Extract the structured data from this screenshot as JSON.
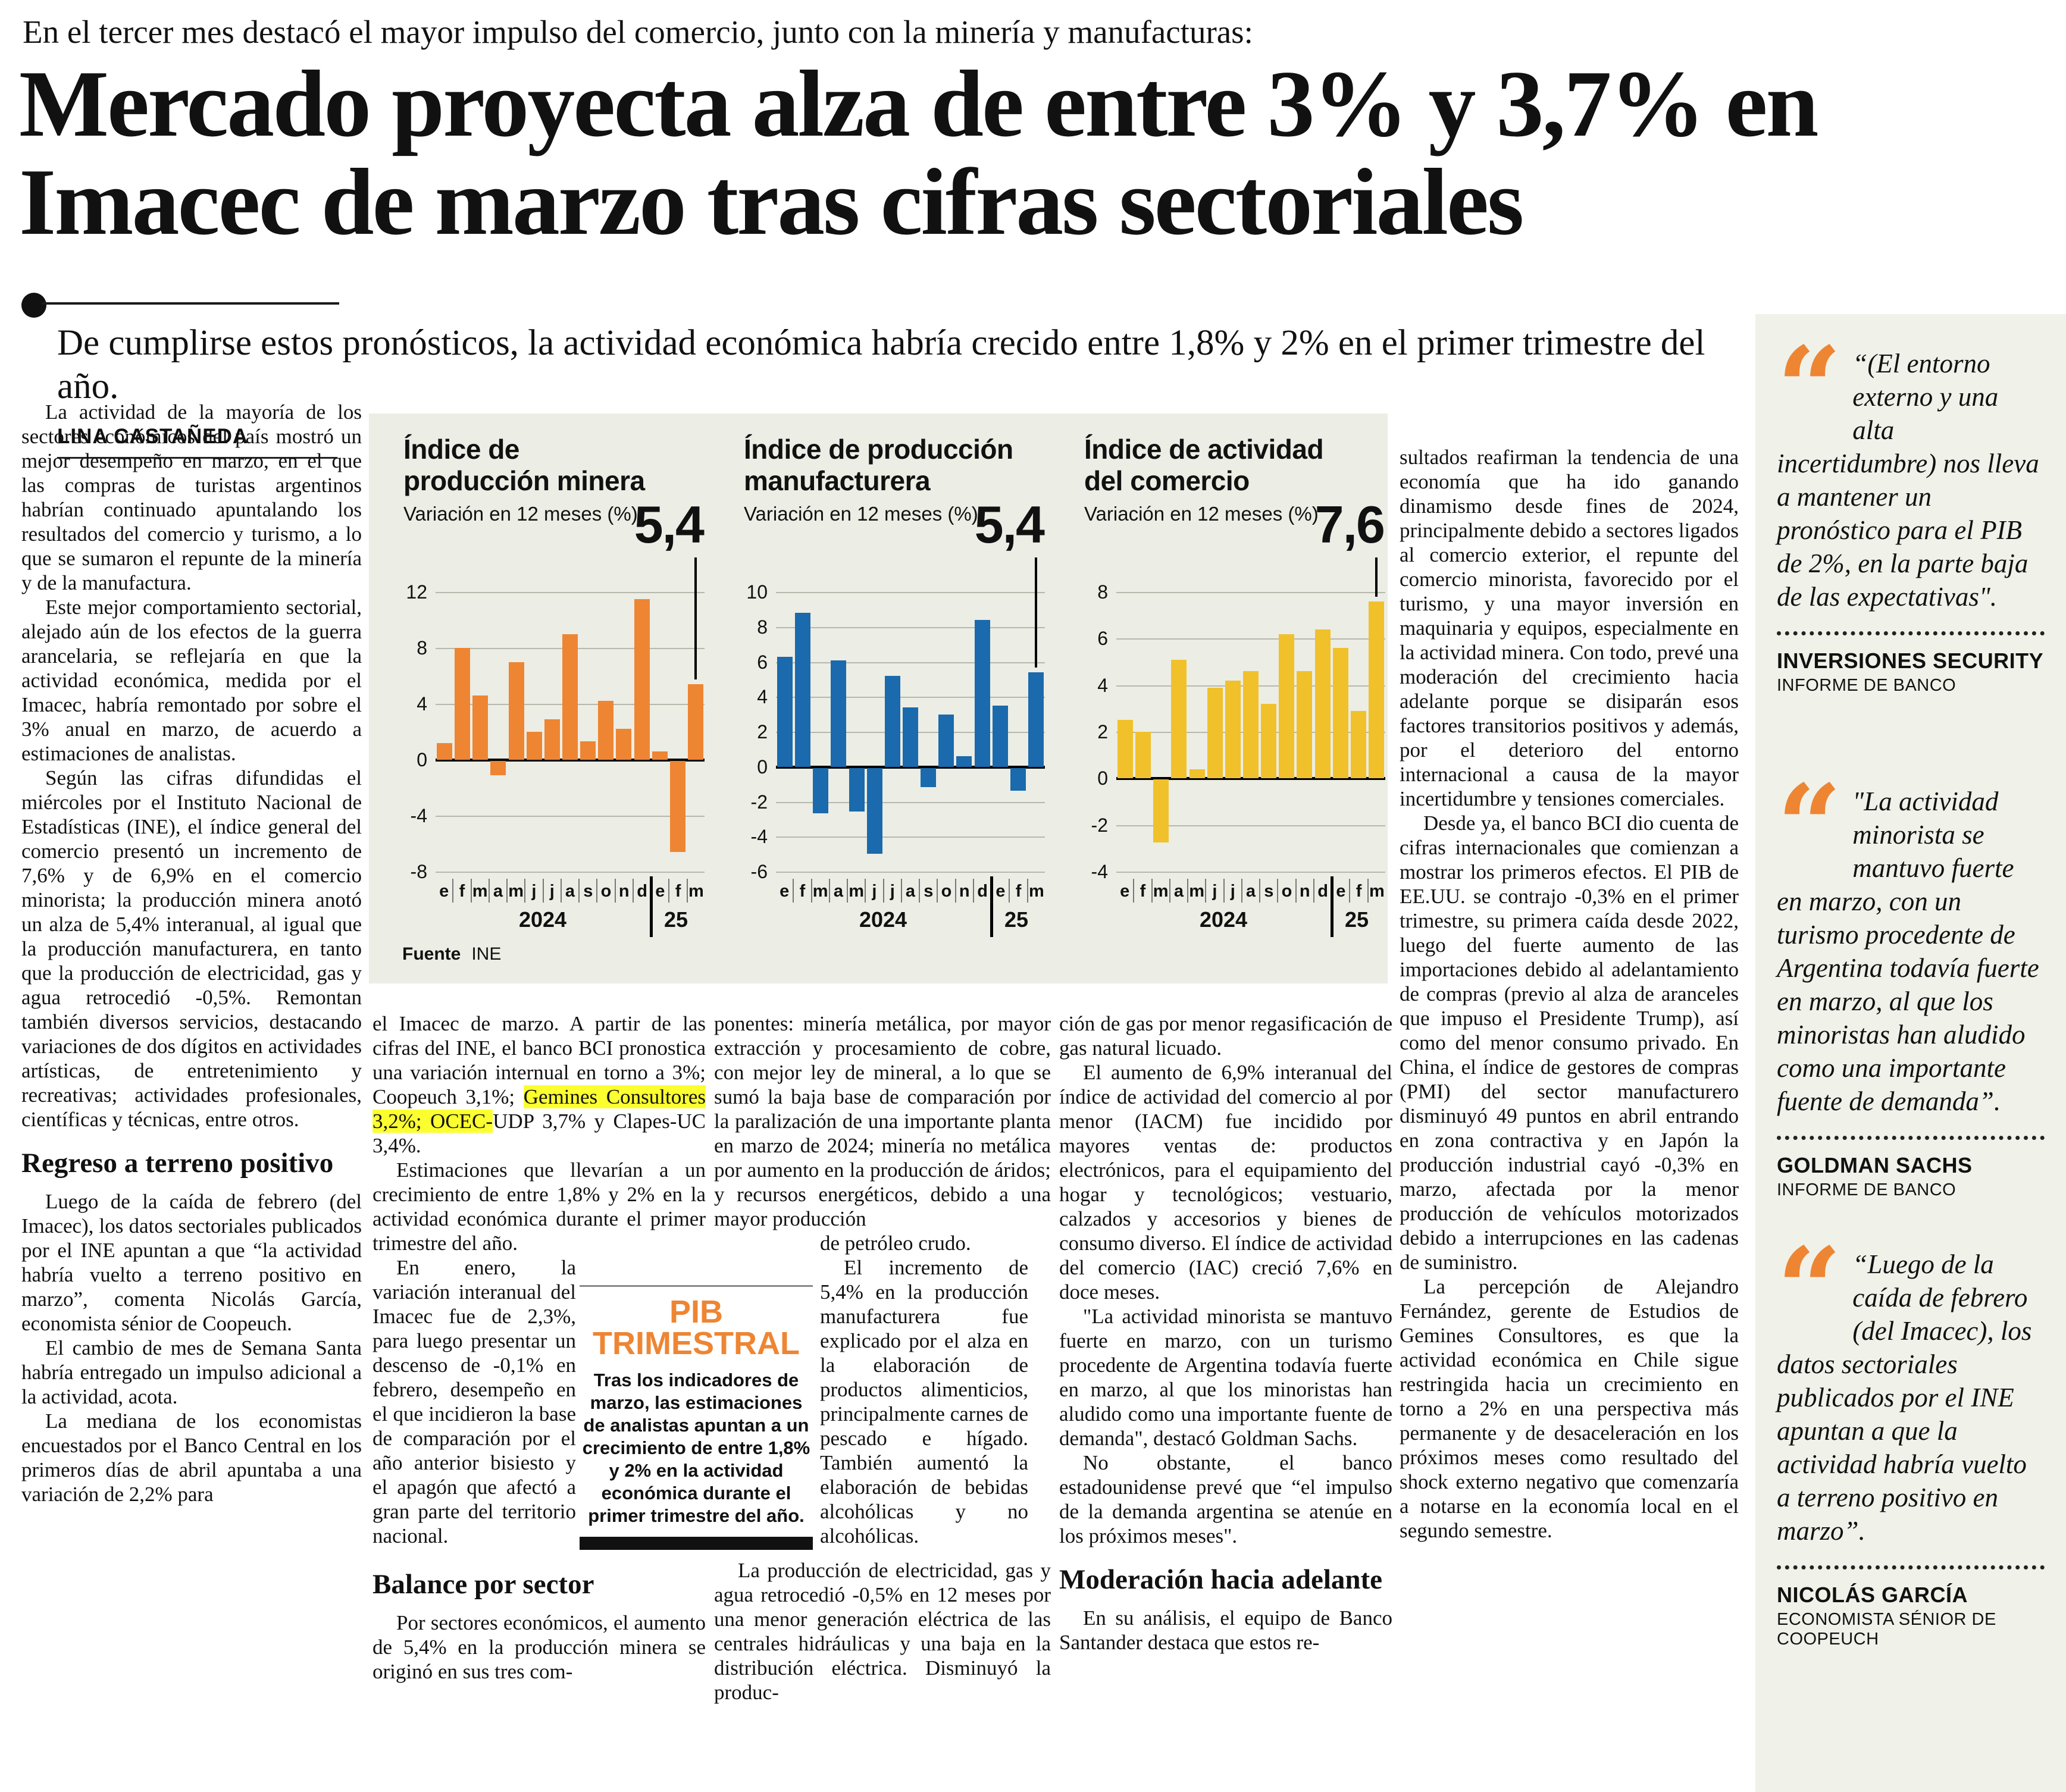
{
  "colors": {
    "accent_orange": "#ee8533",
    "bar_blue": "#1a6aad",
    "bar_yellow": "#f1c12b",
    "highlight_yellow": "#fcff2f",
    "panel_bg": "#ecede4",
    "sidebar_bg": "#f0f1e9"
  },
  "kicker": "En el tercer mes destacó el mayor impulso del comercio, junto con la minería y manufacturas:",
  "headline": "Mercado proyecta alza de entre 3% y 3,7% en Imacec de marzo tras cifras sectoriales",
  "deck": "De cumplirse estos pronósticos, la actividad económica habría crecido entre 1,8% y 2% en el primer trimestre del año.",
  "byline": "LINA CASTAÑEDA",
  "source": {
    "label": "Fuente",
    "value": "INE"
  },
  "chart_data": [
    {
      "id": "chart-produccion-minera",
      "type": "bar",
      "title": "Índice de producción minera",
      "title_lines": [
        "Índice de",
        "producción minera"
      ],
      "subtitle": "Variación en 12 meses (%)",
      "color": "#ee8533",
      "categories": [
        "e",
        "f",
        "m",
        "a",
        "m",
        "j",
        "j",
        "a",
        "s",
        "o",
        "n",
        "d",
        "e",
        "f",
        "m"
      ],
      "year_labels": [
        "2024",
        "25"
      ],
      "values": [
        1.2,
        8.0,
        4.6,
        -1.0,
        7.0,
        2.0,
        2.9,
        9.0,
        1.3,
        4.2,
        2.2,
        11.5,
        0.6,
        -6.5,
        5.4
      ],
      "ylim": [
        -8,
        12
      ],
      "yticks": [
        12,
        8,
        4,
        0,
        -4,
        -8
      ],
      "last_value_label": "5,4",
      "grid": true,
      "legend": null
    },
    {
      "id": "chart-produccion-manufacturera",
      "type": "bar",
      "title": "Índice de producción manufacturera",
      "title_lines": [
        "Índice de producción",
        "manufacturera"
      ],
      "subtitle": "Variación en 12 meses (%)",
      "color": "#1a6aad",
      "categories": [
        "e",
        "f",
        "m",
        "a",
        "m",
        "j",
        "j",
        "a",
        "s",
        "o",
        "n",
        "d",
        "e",
        "f",
        "m"
      ],
      "year_labels": [
        "2024",
        "25"
      ],
      "values": [
        6.3,
        8.8,
        -2.6,
        6.1,
        -2.5,
        -4.9,
        5.2,
        3.4,
        -1.1,
        3.0,
        0.6,
        8.4,
        3.5,
        -1.3,
        5.4
      ],
      "ylim": [
        -6,
        10
      ],
      "yticks": [
        10,
        8,
        6,
        4,
        2,
        0,
        -2,
        -4,
        -6
      ],
      "last_value_label": "5,4",
      "grid": true,
      "legend": null
    },
    {
      "id": "chart-actividad-comercio",
      "type": "bar",
      "title": "Índice de actividad del comercio",
      "title_lines": [
        "Índice de actividad",
        "del comercio"
      ],
      "subtitle": "Variación en 12 meses (%)",
      "color": "#f1c12b",
      "categories": [
        "e",
        "f",
        "m",
        "a",
        "m",
        "j",
        "j",
        "a",
        "s",
        "o",
        "n",
        "d",
        "e",
        "f",
        "m"
      ],
      "year_labels": [
        "2024",
        "25"
      ],
      "values": [
        2.5,
        2.0,
        -2.7,
        5.1,
        0.4,
        3.9,
        4.2,
        4.6,
        3.2,
        6.2,
        4.6,
        6.4,
        5.6,
        2.9,
        7.6
      ],
      "ylim": [
        -4,
        8
      ],
      "yticks": [
        8,
        6,
        4,
        2,
        0,
        -2,
        -4
      ],
      "last_value_label": "7,6",
      "grid": true,
      "legend": null
    }
  ],
  "pib_box": {
    "title_lines": [
      "PIB",
      "TRIMESTRAL"
    ],
    "title": "PIB TRIMESTRAL",
    "text": "Tras los indicadores de marzo, las estimaciones de analistas apuntan a un crecimiento de entre 1,8% y 2% en la actividad económica durante el primer trimestre del año."
  },
  "columns": {
    "col1": [
      {
        "t": "p",
        "text": "La actividad de la mayoría de los sectores económicos del país mostró un mejor desempeño en marzo, en el que las compras de turistas argentinos habrían continuado apuntalando los resultados del comercio y turismo, a lo que se sumaron el repunte de la minería y de la manufactura."
      },
      {
        "t": "p",
        "text": "Este mejor comportamiento sectorial, alejado aún de los efectos de la guerra arancelaria, se reflejaría en que la actividad económica, medida por el Imacec, habría remontado por sobre el 3% anual en marzo, de acuerdo a estimaciones de analistas."
      },
      {
        "t": "p",
        "text": "Según las cifras difundidas el miércoles por el Instituto Nacional de Estadísticas (INE), el índice general del comercio presentó un incremento de 7,6% y de 6,9% en el comercio minorista; la producción minera anotó un alza de 5,4% interanual, al igual que la producción manufacturera, en tanto que la producción de electricidad, gas y agua retrocedió -0,5%. Remontan también diversos servicios, destacando variaciones de dos dígitos en actividades artísticas, de entretenimiento y recreativas; actividades profesionales, científicas y técnicas, entre otros."
      },
      {
        "t": "h2",
        "text": "Regreso a terreno positivo"
      },
      {
        "t": "p",
        "text": "Luego de la caída de febrero (del Imacec), los datos sectoriales publicados por el INE apuntan a que “la actividad habría vuelto a terreno positivo en marzo”, comenta Nicolás García, economista sénior de Coopeuch."
      },
      {
        "t": "p",
        "text": "El cambio de mes de Semana Santa habría entregado un impulso adicional a la actividad, acota."
      },
      {
        "t": "p",
        "text": "La mediana de los economistas encuestados por el Banco Central en los primeros días de abril apuntaba a una variación de 2,2% para"
      }
    ],
    "col2": [
      {
        "t": "p",
        "cls": "cont",
        "pre": "el Imacec de marzo. A partir de las cifras del INE, el banco BCI pronostica una variación internual en torno a 3%; Coopeuch 3,1%; ",
        "mark": "Gemines Consultores 3,2%; OCEC-",
        "post": "UDP 3,7% y Clapes-UC 3,4%."
      },
      {
        "t": "p",
        "text": "Estimaciones que llevarían a un crecimiento de entre 1,8% y 2% en la actividad económica durante el primer trimestre del año."
      },
      {
        "t": "wrap",
        "cls": "narrow-l",
        "blocks": [
          {
            "t": "p",
            "text": "En enero, la variación interanual del Imacec fue de 2,3%, para luego presentar un descenso de -0,1% en febrero, desempeño en el que incidieron la base de comparación por el año anterior bisiesto y el apagón que afectó a gran parte del territorio nacional."
          }
        ]
      },
      {
        "t": "h2",
        "text": "Balance por sector"
      },
      {
        "t": "p",
        "text": "Por sectores económicos, el aumento de 5,4% en la producción minera se originó en sus tres com-"
      }
    ],
    "col3": [
      {
        "t": "p",
        "cls": "cont",
        "text": "ponentes: minería metálica, por mayor extracción y procesamiento de cobre, con mejor ley de mineral, a lo que se sumó la baja base de comparación por la paralización de una importante planta en marzo de 2024; minería no metálica por aumento en la producción de áridos; y recursos energéticos, debido a una mayor producción"
      },
      {
        "t": "wrap",
        "cls": "narrow-r",
        "blocks": [
          {
            "t": "p",
            "cls": "cont",
            "text": "de petróleo crudo."
          },
          {
            "t": "p",
            "text": "El incremento de 5,4% en la producción manufacturera fue explicado por el alza en la elaboración de productos alimenticios, principalmente carnes de pescado e hígado. También aumentó la elaboración de bebidas alcohólicas y no alcohólicas."
          }
        ]
      },
      {
        "t": "p",
        "text": "La producción de electricidad, gas y agua retrocedió -0,5% en 12 meses por una menor generación eléctrica de las centrales hidráulicas y una baja en la distribución eléctrica. Disminuyó la produc-"
      }
    ],
    "col4": [
      {
        "t": "p",
        "cls": "cont",
        "text": "ción de gas por menor regasificación de gas natural licuado."
      },
      {
        "t": "p",
        "text": "El aumento de 6,9% interanual del índice de actividad del comercio al por menor (IACM) fue incidido por mayores ventas de: productos electrónicos, para el equipamiento del hogar y tecnológicos; vestuario, calzados y accesorios y bienes de consumo diverso. El índice de actividad del comercio (IAC) creció 7,6% en doce meses."
      },
      {
        "t": "p",
        "text": "\"La actividad minorista se mantuvo fuerte en marzo, con un turismo procedente de Argentina todavía fuerte en marzo, al que los minoristas han aludido como una importante fuente de demanda\", destacó Goldman Sachs."
      },
      {
        "t": "p",
        "text": "No obstante, el banco estadounidense prevé que “el impulso de la demanda argentina se atenúe en los próximos meses\"."
      },
      {
        "t": "h2",
        "text": "Moderación hacia adelante"
      },
      {
        "t": "p",
        "text": "En su análisis, el equipo de Banco Santander destaca que estos re-"
      }
    ],
    "col5": [
      {
        "t": "p",
        "cls": "cont",
        "text": "sultados reafirman la tendencia de una economía que ha ido ganando dinamismo desde fines de 2024, principalmente debido a sectores ligados al comercio exterior, el repunte del comercio minorista, favorecido por el turismo, y una mayor inversión en maquinaria y equipos, especialmente en la actividad minera. Con todo, prevé una moderación del crecimiento hacia adelante porque se disiparán esos factores transitorios positivos y además, por el deterioro del entorno internacional a causa de la mayor incertidumbre y tensiones comerciales."
      },
      {
        "t": "p",
        "text": "Desde ya, el banco BCI dio cuenta de cifras internacionales que comienzan a mostrar los primeros efectos. El PIB de EE.UU. se contrajo -0,3% en el primer trimestre, su primera caída desde 2022, luego del fuerte aumento de las importaciones debido al adelantamiento de compras (previo al alza de aranceles que impuso el Presidente Trump), así como del menor consumo privado. En China, el índice de gestores de compras (PMI) del sector manufacturero disminuyó 49 puntos en abril entrando en zona contractiva y en Japón la producción industrial cayó -0,3% en marzo, afectada por la menor producción de vehículos motorizados debido a interrupciones en las cadenas de suministro."
      },
      {
        "t": "p",
        "text": "La percepción de Alejandro Fernández, gerente de Estudios de Gemines Consultores, es que la actividad económica en Chile sigue restringida hacia un crecimiento en torno a 2% en una perspectiva más permanente y de desaceleración en los próximos meses como resultado del shock externo negativo que comenzaría a notarse en la economía local en el segundo semestre."
      }
    ]
  },
  "quotes": [
    {
      "text": "“(El entorno externo y una alta incertidumbre) nos lleva a mantener un pronóstico para el PIB de 2%, en la parte baja de las expectativas\".",
      "name": "INVERSIONES SECURITY",
      "role": "INFORME DE BANCO"
    },
    {
      "text": "\"La actividad minorista se mantuvo fuerte en marzo, con un turismo procedente de Argentina todavía fuerte en marzo, al que los minoristas han aludido como una importante fuente de demanda”.",
      "name": "GOLDMAN SACHS",
      "role": "INFORME DE BANCO"
    },
    {
      "text": "“Luego de la caída de febrero (del Imacec), los datos sectoriales publicados por el INE apuntan a que la actividad habría vuelto a terreno positivo en marzo”.",
      "name": "NICOLÁS GARCÍA",
      "role": "ECONOMISTA SÉNIOR DE COOPEUCH"
    }
  ]
}
